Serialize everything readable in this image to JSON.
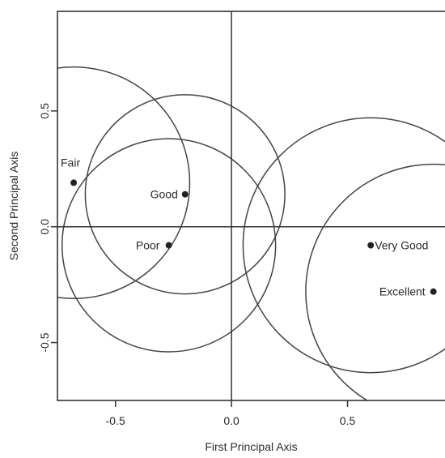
{
  "chart_data": {
    "type": "scatter",
    "title": "",
    "xlabel": "First Principal Axis",
    "ylabel": "Second Principal Axis",
    "xlim": [
      -0.75,
      0.92
    ],
    "ylim": [
      -0.75,
      0.93
    ],
    "xticks": [
      {
        "value": -0.5,
        "label": "-0.5"
      },
      {
        "value": 0.0,
        "label": "0.0"
      },
      {
        "value": 0.5,
        "label": "0.5"
      }
    ],
    "yticks": [
      {
        "value": -0.5,
        "label": "-0.5"
      },
      {
        "value": 0.0,
        "label": "0.0"
      },
      {
        "value": 0.5,
        "label": "0.5"
      }
    ],
    "reference_lines": {
      "x": 0.0,
      "y": 0.0
    },
    "grid": false,
    "points": [
      {
        "label": "Fair",
        "x": -0.68,
        "y": 0.19,
        "circle_radius": 0.5
      },
      {
        "label": "Good",
        "x": -0.2,
        "y": 0.14,
        "circle_radius": 0.43
      },
      {
        "label": "Poor",
        "x": -0.27,
        "y": -0.08,
        "circle_radius": 0.46
      },
      {
        "label": "Very Good",
        "x": 0.6,
        "y": -0.08,
        "circle_radius": 0.55
      },
      {
        "label": "Excellent",
        "x": 0.87,
        "y": -0.28,
        "circle_radius": 0.55
      }
    ]
  }
}
